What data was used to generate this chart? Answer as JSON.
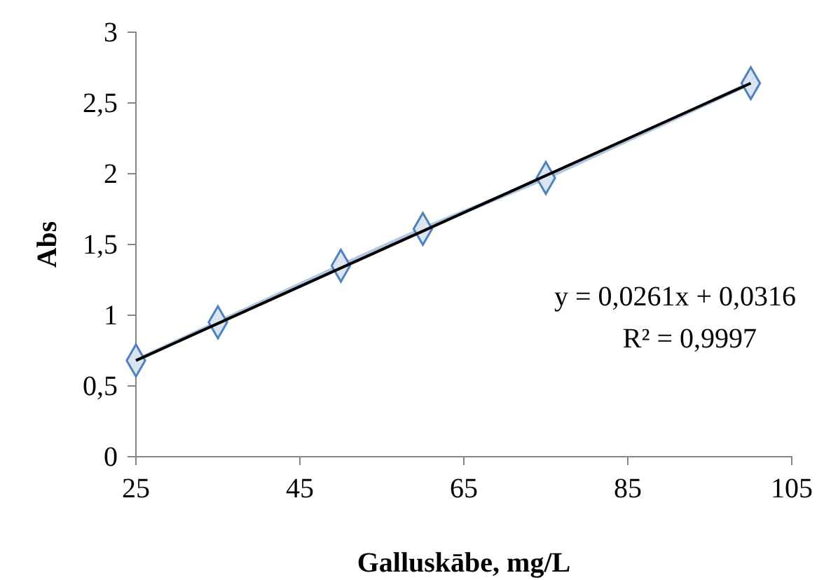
{
  "chart_data": {
    "type": "line",
    "xlabel": "Galluskābe, mg/L",
    "ylabel": "Abs",
    "xlim": [
      25,
      105
    ],
    "xticks": [
      25,
      45,
      65,
      85,
      105
    ],
    "ylim": [
      0,
      3
    ],
    "yticks": [
      0,
      {
        "value": 0.5,
        "label": "0,5"
      },
      1,
      {
        "value": 1.5,
        "label": "1,5"
      },
      2,
      {
        "value": 2.5,
        "label": "2,5"
      },
      3
    ],
    "grid": false,
    "series": [
      {
        "color": "#4f81bd",
        "marker": "diamond",
        "x": [
          25,
          35,
          50,
          60,
          75,
          100
        ],
        "values": [
          0.68,
          0.95,
          1.35,
          1.61,
          1.97,
          2.64
        ]
      },
      {
        "color": "#000000",
        "marker": "none",
        "x": [
          25,
          100
        ],
        "values": [
          0.68,
          2.64
        ]
      }
    ],
    "annotations": [
      "y = 0,0261x + 0,0316",
      "R² = 0,9997"
    ]
  }
}
